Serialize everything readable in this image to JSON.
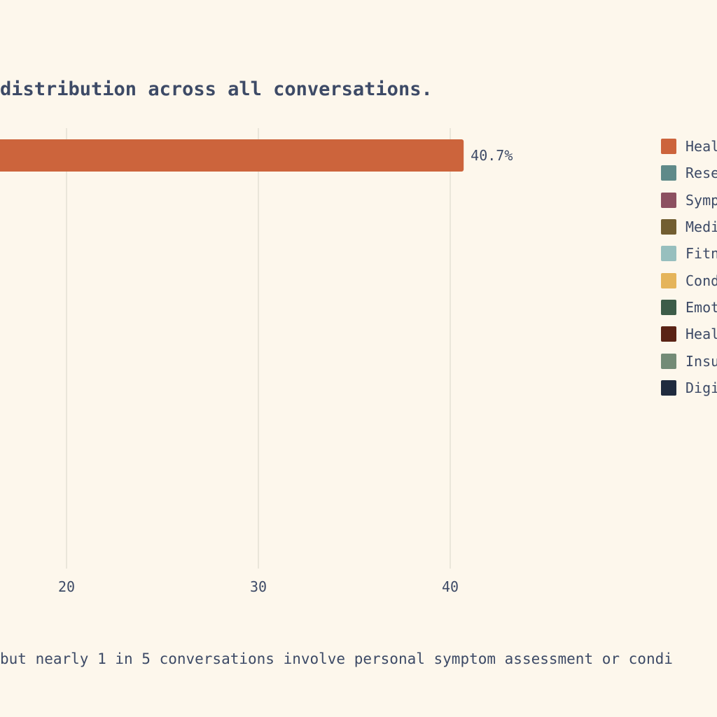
{
  "chart_data": {
    "type": "bar",
    "orientation": "horizontal",
    "title": "distribution across all conversations.",
    "caption": "but nearly 1 in 5 conversations involve personal symptom assessment or condi",
    "categories": [
      "Heal"
    ],
    "series": [
      {
        "values": [
          40.7
        ],
        "color": "#cc643c"
      }
    ],
    "data_labels": [
      "40.7%"
    ],
    "x_ticks": [
      {
        "value": 20,
        "label": "20"
      },
      {
        "value": 30,
        "label": "30"
      },
      {
        "value": 40,
        "label": "40"
      }
    ],
    "xlim": [
      16.5,
      42
    ],
    "grid": true,
    "legend_position": "right",
    "legend": [
      {
        "label": "Heal",
        "color": "#cc643c"
      },
      {
        "label": "Rese",
        "color": "#5f8a89"
      },
      {
        "label": "Symp",
        "color": "#8c5060"
      },
      {
        "label": "Medi",
        "color": "#725e31"
      },
      {
        "label": "Fitn",
        "color": "#97bfbe"
      },
      {
        "label": "Cond",
        "color": "#e5b45a"
      },
      {
        "label": "Emot",
        "color": "#3c5c48"
      },
      {
        "label": "Heal",
        "color": "#5a2315"
      },
      {
        "label": "Insu",
        "color": "#738b76"
      },
      {
        "label": "Digi",
        "color": "#1f2b3e"
      }
    ]
  }
}
